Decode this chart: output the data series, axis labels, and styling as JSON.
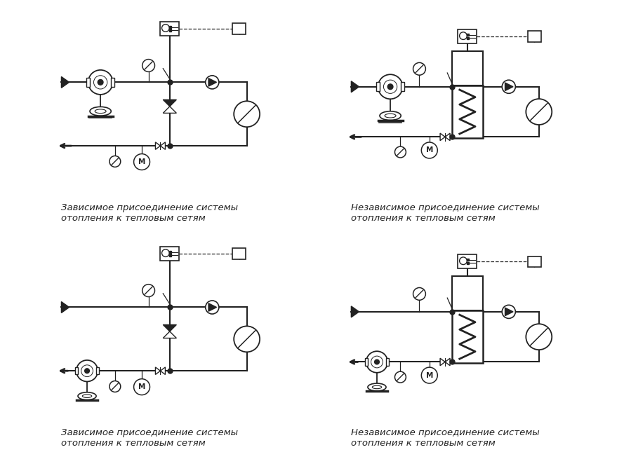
{
  "captions": [
    "Зависимое присоединение системы\nотопления к тепловым сетям",
    "Независимое присоединение системы\nотопления к тепловым сетям",
    "Зависимое присоединение системы\nотопления к тепловым сетям",
    "Независимое присоединение системы\nотопления к тепловым сетям"
  ],
  "bg_color": "#ffffff",
  "line_color": "#222222",
  "lw": 1.5,
  "figsize": [
    8.89,
    6.45
  ],
  "dpi": 100,
  "caption_fontsize": 9.5
}
